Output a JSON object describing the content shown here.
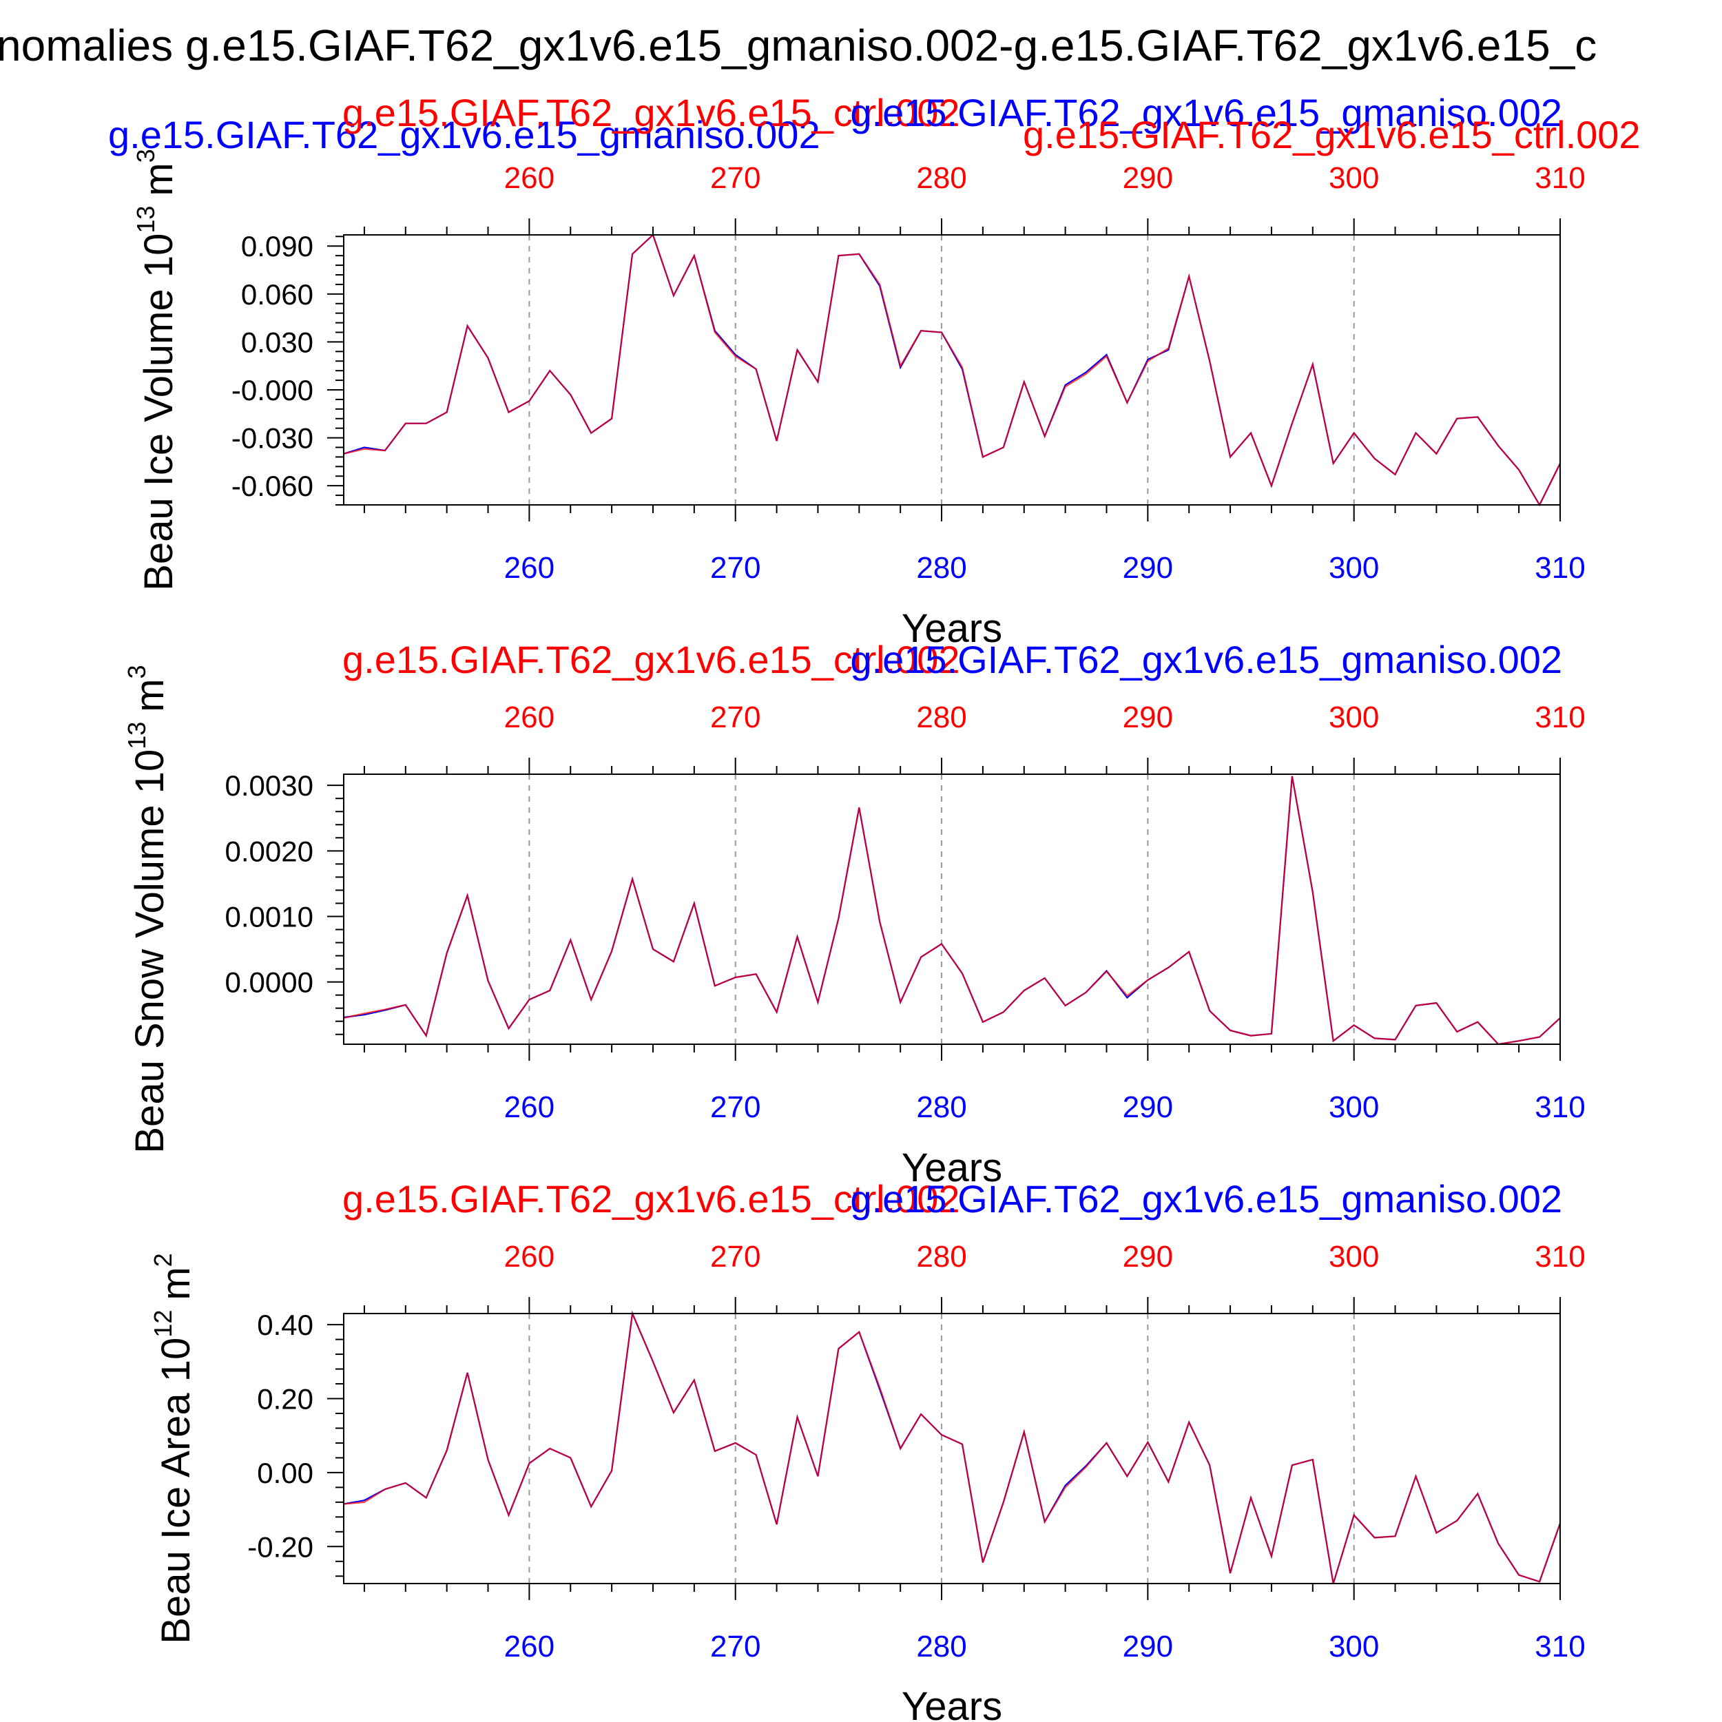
{
  "page_title": "nomalies g.e15.GIAF.T62_gx1v6.e15_gmaniso.002-g.e15.GIAF.T62_gx1v6.e15_c",
  "colors": {
    "red": "#ff0000",
    "blue": "#0000ff",
    "line": "#a0005a",
    "black": "#000000"
  },
  "panels": [
    {
      "legend_red": "g.e15.GIAF.T62_gx1v6.e15_ctrl.002",
      "legend_blue": "g.e15.GIAF.T62_gx1v6.e15_gmaniso.002",
      "legend_red_stacked": "g.e15.GIAF.T62_gx1v6.e15_ctrl.002",
      "ylabel_main": "Beau Ice Volume 10",
      "ylabel_exp": "13",
      "ylabel_unit": "m",
      "ylabel_unit_exp": "3",
      "xlabel": "Years"
    },
    {
      "legend_red": "g.e15.GIAF.T62_gx1v6.e15_ctrl.002",
      "legend_blue": "g.e15.GIAF.T62_gx1v6.e15_gmaniso.002",
      "ylabel_main": "Beau Snow Volume 10",
      "ylabel_exp": "13",
      "ylabel_unit": "m",
      "ylabel_unit_exp": "3",
      "xlabel": "Years"
    },
    {
      "legend_red": "g.e15.GIAF.T62_gx1v6.e15_ctrl.002",
      "legend_blue": "g.e15.GIAF.T62_gx1v6.e15_gmaniso.002",
      "ylabel_main": "Beau Ice Area 10",
      "ylabel_exp": "12",
      "ylabel_unit": "m",
      "ylabel_unit_exp": "2",
      "xlabel": "Years"
    }
  ],
  "chart_data": [
    {
      "type": "line",
      "xlabel": "Years",
      "ylabel": "Beau Ice Volume 10^13 m^3",
      "xlim": [
        251,
        310
      ],
      "ylim": [
        -0.072,
        0.097
      ],
      "xticks": [
        260,
        270,
        280,
        290,
        300,
        310
      ],
      "yticks": [
        0.09,
        0.06,
        0.03,
        -0.0,
        -0.03,
        -0.06
      ],
      "ytick_labels": [
        "0.090",
        "0.060",
        "0.030",
        "-0.000",
        "-0.030",
        "-0.060"
      ],
      "x": [
        251,
        252,
        253,
        254,
        255,
        256,
        257,
        258,
        259,
        260,
        261,
        262,
        263,
        264,
        265,
        266,
        267,
        268,
        269,
        270,
        271,
        272,
        273,
        274,
        275,
        276,
        277,
        278,
        279,
        280,
        281,
        282,
        283,
        284,
        285,
        286,
        287,
        288,
        289,
        290,
        291,
        292,
        293,
        294,
        295,
        296,
        297,
        298,
        299,
        300,
        301,
        302,
        303,
        304,
        305,
        306,
        307,
        308,
        309,
        310
      ],
      "series": [
        {
          "name": "g.e15.GIAF.T62_gx1v6.e15_gmaniso.002",
          "color": "blue",
          "values": [
            -0.04,
            -0.036,
            -0.038,
            -0.021,
            -0.021,
            -0.014,
            0.04,
            0.02,
            -0.014,
            -0.007,
            0.012,
            -0.003,
            -0.027,
            -0.018,
            0.085,
            0.097,
            0.059,
            0.084,
            0.037,
            0.022,
            0.013,
            -0.032,
            0.025,
            0.005,
            0.084,
            0.085,
            0.065,
            0.014,
            0.037,
            0.036,
            0.013,
            -0.042,
            -0.036,
            0.005,
            -0.029,
            0.003,
            0.011,
            0.022,
            -0.008,
            0.019,
            0.025,
            0.071,
            0.018,
            -0.042,
            -0.027,
            -0.06,
            -0.021,
            0.016,
            -0.046,
            -0.027,
            -0.043,
            -0.053,
            -0.027,
            -0.04,
            -0.018,
            -0.017,
            -0.035,
            -0.05,
            -0.072,
            -0.046
          ]
        },
        {
          "name": "g.e15.GIAF.T62_gx1v6.e15_ctrl.002",
          "color": "red",
          "values": [
            -0.04,
            -0.037,
            -0.038,
            -0.021,
            -0.021,
            -0.014,
            0.04,
            0.02,
            -0.014,
            -0.007,
            0.012,
            -0.003,
            -0.027,
            -0.018,
            0.085,
            0.097,
            0.059,
            0.084,
            0.036,
            0.021,
            0.013,
            -0.032,
            0.025,
            0.005,
            0.084,
            0.085,
            0.066,
            0.015,
            0.037,
            0.036,
            0.014,
            -0.042,
            -0.036,
            0.005,
            -0.029,
            0.002,
            0.01,
            0.021,
            -0.008,
            0.018,
            0.026,
            0.071,
            0.018,
            -0.042,
            -0.027,
            -0.06,
            -0.021,
            0.016,
            -0.046,
            -0.027,
            -0.043,
            -0.053,
            -0.027,
            -0.04,
            -0.018,
            -0.017,
            -0.035,
            -0.05,
            -0.072,
            -0.046
          ]
        }
      ]
    },
    {
      "type": "line",
      "xlabel": "Years",
      "ylabel": "Beau Snow Volume 10^13 m^3",
      "xlim": [
        251,
        310
      ],
      "ylim": [
        -0.00095,
        0.00317
      ],
      "xticks": [
        260,
        270,
        280,
        290,
        300,
        310
      ],
      "yticks": [
        0.003,
        0.002,
        0.001,
        0.0
      ],
      "ytick_labels": [
        "0.0030",
        "0.0020",
        "0.0010",
        "0.0000"
      ],
      "x": [
        251,
        252,
        253,
        254,
        255,
        256,
        257,
        258,
        259,
        260,
        261,
        262,
        263,
        264,
        265,
        266,
        267,
        268,
        269,
        270,
        271,
        272,
        273,
        274,
        275,
        276,
        277,
        278,
        279,
        280,
        281,
        282,
        283,
        284,
        285,
        286,
        287,
        288,
        289,
        290,
        291,
        292,
        293,
        294,
        295,
        296,
        297,
        298,
        299,
        300,
        301,
        302,
        303,
        304,
        305,
        306,
        307,
        308,
        309,
        310
      ],
      "series": [
        {
          "name": "g.e15.GIAF.T62_gx1v6.e15_gmaniso.002",
          "color": "blue",
          "values": [
            -0.00054,
            -0.0005,
            -0.00043,
            -0.00035,
            -0.00082,
            0.00044,
            0.00132,
            2e-05,
            -0.00071,
            -0.00027,
            -0.00013,
            0.00064,
            -0.00027,
            0.00047,
            0.00157,
            0.0005,
            0.00031,
            0.0012,
            -6e-05,
            7e-05,
            0.00012,
            -0.00046,
            0.00069,
            -0.00031,
            0.00097,
            0.00266,
            0.00092,
            -0.00031,
            0.00038,
            0.00058,
            0.00013,
            -0.00061,
            -0.00046,
            -0.00013,
            6e-05,
            -0.00036,
            -0.00016,
            0.00017,
            -0.00024,
            3e-05,
            0.00022,
            0.00046,
            -0.00044,
            -0.00074,
            -0.00082,
            -0.00079,
            0.00314,
            0.00137,
            -0.0009,
            -0.00066,
            -0.00086,
            -0.00088,
            -0.00036,
            -0.00032,
            -0.00076,
            -0.00061,
            -0.00095,
            -0.0009,
            -0.00084,
            -0.00055
          ]
        },
        {
          "name": "g.e15.GIAF.T62_gx1v6.e15_ctrl.002",
          "color": "red",
          "values": [
            -0.00055,
            -0.00048,
            -0.00042,
            -0.00035,
            -0.00082,
            0.00044,
            0.00132,
            2e-05,
            -0.00071,
            -0.00027,
            -0.00013,
            0.00064,
            -0.00027,
            0.00047,
            0.00157,
            0.0005,
            0.00031,
            0.0012,
            -6e-05,
            7e-05,
            0.00012,
            -0.00046,
            0.00069,
            -0.00031,
            0.00097,
            0.00266,
            0.00092,
            -0.00031,
            0.00038,
            0.00058,
            0.00013,
            -0.00061,
            -0.00046,
            -0.00013,
            6e-05,
            -0.00036,
            -0.00016,
            0.00016,
            -0.00021,
            3e-05,
            0.00022,
            0.00046,
            -0.00044,
            -0.00074,
            -0.00082,
            -0.00079,
            0.00314,
            0.00137,
            -0.0009,
            -0.00066,
            -0.00086,
            -0.00088,
            -0.00036,
            -0.00032,
            -0.00076,
            -0.00061,
            -0.00095,
            -0.0009,
            -0.00084,
            -0.00055
          ]
        }
      ]
    },
    {
      "type": "line",
      "xlabel": "Years",
      "ylabel": "Beau Ice Area 10^12 m^2",
      "xlim": [
        251,
        310
      ],
      "ylim": [
        -0.3,
        0.43
      ],
      "xticks": [
        260,
        270,
        280,
        290,
        300,
        310
      ],
      "yticks": [
        0.4,
        0.2,
        0.0,
        -0.2
      ],
      "ytick_labels": [
        "0.40",
        "0.20",
        "0.00",
        "-0.20"
      ],
      "x": [
        251,
        252,
        253,
        254,
        255,
        256,
        257,
        258,
        259,
        260,
        261,
        262,
        263,
        264,
        265,
        266,
        267,
        268,
        269,
        270,
        271,
        272,
        273,
        274,
        275,
        276,
        277,
        278,
        279,
        280,
        281,
        282,
        283,
        284,
        285,
        286,
        287,
        288,
        289,
        290,
        291,
        292,
        293,
        294,
        295,
        296,
        297,
        298,
        299,
        300,
        301,
        302,
        303,
        304,
        305,
        306,
        307,
        308,
        309,
        310
      ],
      "series": [
        {
          "name": "g.e15.GIAF.T62_gx1v6.e15_gmaniso.002",
          "color": "blue",
          "values": [
            -0.085,
            -0.075,
            -0.045,
            -0.028,
            -0.068,
            0.06,
            0.27,
            0.035,
            -0.115,
            0.025,
            0.065,
            0.04,
            -0.092,
            0.005,
            0.43,
            0.3,
            0.162,
            0.25,
            0.058,
            0.08,
            0.048,
            -0.14,
            0.15,
            -0.01,
            0.335,
            0.38,
            0.225,
            0.065,
            0.158,
            0.102,
            0.077,
            -0.243,
            -0.08,
            0.11,
            -0.133,
            -0.035,
            0.018,
            0.08,
            -0.01,
            0.082,
            -0.025,
            0.136,
            0.02,
            -0.272,
            -0.068,
            -0.226,
            0.02,
            0.035,
            -0.3,
            -0.115,
            -0.176,
            -0.172,
            -0.01,
            -0.163,
            -0.13,
            -0.057,
            -0.192,
            -0.277,
            -0.295,
            -0.137
          ]
        },
        {
          "name": "g.e15.GIAF.T62_gx1v6.e15_ctrl.002",
          "color": "red",
          "values": [
            -0.085,
            -0.08,
            -0.045,
            -0.028,
            -0.068,
            0.06,
            0.27,
            0.035,
            -0.115,
            0.025,
            0.065,
            0.04,
            -0.092,
            0.005,
            0.43,
            0.3,
            0.162,
            0.25,
            0.058,
            0.08,
            0.048,
            -0.14,
            0.15,
            -0.01,
            0.335,
            0.38,
            0.23,
            0.065,
            0.158,
            0.102,
            0.077,
            -0.243,
            -0.08,
            0.11,
            -0.133,
            -0.04,
            0.015,
            0.08,
            -0.01,
            0.082,
            -0.025,
            0.136,
            0.02,
            -0.272,
            -0.068,
            -0.226,
            0.02,
            0.035,
            -0.3,
            -0.115,
            -0.176,
            -0.172,
            -0.01,
            -0.163,
            -0.13,
            -0.057,
            -0.192,
            -0.277,
            -0.295,
            -0.137
          ]
        }
      ]
    }
  ]
}
